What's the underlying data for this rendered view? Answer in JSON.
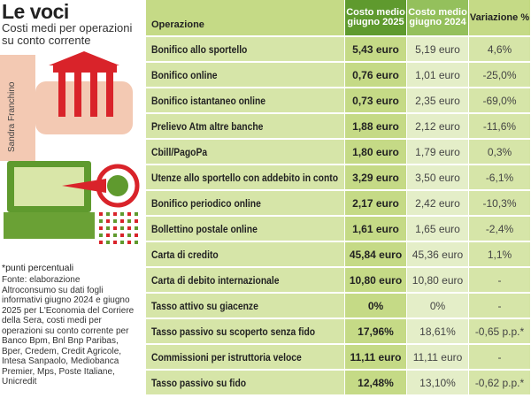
{
  "header": {
    "title": "Le voci",
    "subtitle": "Costi medi per operazioni su conto corrente",
    "credit": "Sandra Franchino"
  },
  "notes": {
    "footnote": "*punti percentuali",
    "source": "Fonte: elaborazione Altroconsumo su dati fogli informativi giugno 2024 e giugno 2025 per L'Economia del Corriere della Sera, costi medi per operazioni su conto corrente per Banco Bpm, Bnl Bnp Paribas, Bper, Credem, Credit Agricole, Intesa Sanpaolo, Mediobanca Premier, Mps, Poste Italiane, Unicredit"
  },
  "table": {
    "columns": [
      "Operazione",
      "Costo medio giugno 2025",
      "Costo medio giugno 2024",
      "Variazione %"
    ],
    "rows": [
      [
        "Bonifico allo sportello",
        "5,43 euro",
        "5,19 euro",
        "4,6%"
      ],
      [
        "Bonifico online",
        "0,76 euro",
        "1,01 euro",
        "-25,0%"
      ],
      [
        "Bonifico istantaneo online",
        "0,73 euro",
        "2,35 euro",
        "-69,0%"
      ],
      [
        "Prelievo Atm altre banche",
        "1,88 euro",
        "2,12 euro",
        "-11,6%"
      ],
      [
        "Cbill/PagoPa",
        "1,80 euro",
        "1,79 euro",
        "0,3%"
      ],
      [
        "Utenze allo sportello con addebito in conto",
        "3,29 euro",
        "3,50 euro",
        "-6,1%"
      ],
      [
        "Bonifico periodico online",
        "2,17 euro",
        "2,42 euro",
        "-10,3%"
      ],
      [
        "Bollettino postale online",
        "1,61 euro",
        "1,65 euro",
        "-2,4%"
      ],
      [
        "Carta di credito",
        "45,84 euro",
        "45,36 euro",
        "1,1%"
      ],
      [
        "Carta di debito internazionale",
        "10,80 euro",
        "10,80 euro",
        "-"
      ],
      [
        "Tasso attivo su giacenze",
        "0%",
        "0%",
        "-"
      ],
      [
        "Tasso passivo su scoperto senza fido",
        "17,96%",
        "18,61%",
        "-0,65 p.p.*"
      ],
      [
        "Commissioni per istruttoria veloce",
        "11,11 euro",
        "11,11 euro",
        "-"
      ],
      [
        "Tasso passivo su fido",
        "12,48%",
        "13,10%",
        "-0,62 p.p.*"
      ]
    ]
  }
}
